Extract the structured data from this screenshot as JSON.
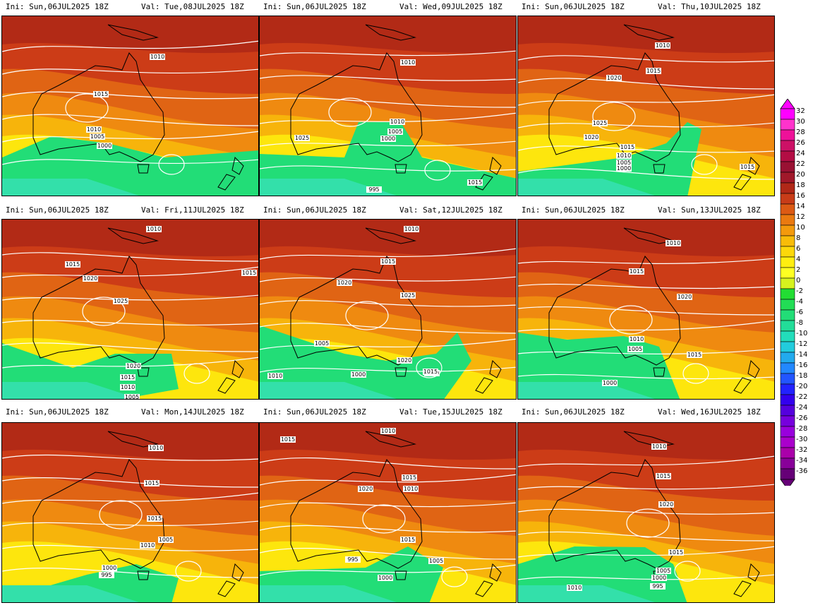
{
  "panels": [
    {
      "ini": "Ini: Sun,06JUL2025 18Z",
      "val": "Val: Tue,08JUL2025 18Z",
      "iso_labels": [
        "1010",
        "1015",
        "1010",
        "1005",
        "1000"
      ]
    },
    {
      "ini": "Ini: Sun,06JUL2025 18Z",
      "val": "Val: Wed,09JUL2025 18Z",
      "iso_labels": [
        "1010",
        "1025",
        "1010",
        "1005",
        "1000",
        "995",
        "1015"
      ]
    },
    {
      "ini": "Ini: Sun,06JUL2025 18Z",
      "val": "Val: Thu,10JUL2025 18Z",
      "iso_labels": [
        "1010",
        "1015",
        "1020",
        "1025",
        "1020",
        "1015",
        "1010",
        "1005",
        "1000",
        "1015"
      ]
    },
    {
      "ini": "Ini: Sun,06JUL2025 18Z",
      "val": "Val: Fri,11JUL2025 18Z",
      "iso_labels": [
        "1010",
        "1015",
        "1015",
        "1020",
        "1025",
        "1020",
        "1015",
        "1010",
        "1005"
      ]
    },
    {
      "ini": "Ini: Sun,06JUL2025 18Z",
      "val": "Val: Sat,12JUL2025 18Z",
      "iso_labels": [
        "1010",
        "1015",
        "1020",
        "1025",
        "1005",
        "1020",
        "1010",
        "1000",
        "1015",
        "1010"
      ]
    },
    {
      "ini": "Ini: Sun,06JUL2025 18Z",
      "val": "Val: Sun,13JUL2025 18Z",
      "iso_labels": [
        "1010",
        "1015",
        "1020",
        "1010",
        "1005",
        "1015",
        "1000"
      ]
    },
    {
      "ini": "Ini: Sun,06JUL2025 18Z",
      "val": "Val: Mon,14JUL2025 18Z",
      "iso_labels": [
        "1010",
        "1015",
        "1015",
        "1005",
        "1010",
        "1000",
        "995"
      ]
    },
    {
      "ini": "Ini: Sun,06JUL2025 18Z",
      "val": "Val: Tue,15JUL2025 18Z",
      "iso_labels": [
        "1010",
        "1015",
        "1015",
        "1020",
        "1010",
        "1015",
        "995",
        "1005",
        "1000"
      ]
    },
    {
      "ini": "Ini: Sun,06JUL2025 18Z",
      "val": "Val: Wed,16JUL2025 18Z",
      "iso_labels": [
        "1010",
        "1015",
        "1020",
        "1015",
        "1005",
        "1000",
        "995",
        "1010"
      ]
    }
  ],
  "colorbar": {
    "labels": [
      "32",
      "30",
      "28",
      "26",
      "24",
      "22",
      "20",
      "18",
      "16",
      "14",
      "12",
      "10",
      "8",
      "6",
      "4",
      "2",
      "0",
      "-2",
      "-4",
      "-6",
      "-8",
      "-10",
      "-12",
      "-14",
      "-16",
      "-18",
      "-20",
      "-22",
      "-24",
      "-26",
      "-28",
      "-30",
      "-32",
      "-34",
      "-36"
    ],
    "colors": [
      "#ff00ff",
      "#ff33cc",
      "#ee1199",
      "#cc1166",
      "#b30d44",
      "#991133",
      "#a0182a",
      "#b02818",
      "#c83c18",
      "#dc5a14",
      "#ea7a10",
      "#f39a0c",
      "#f8bc08",
      "#fcd80a",
      "#ffee10",
      "#ffff22",
      "#d6f21e",
      "#22dd33",
      "#22dd55",
      "#22dd77",
      "#22dd99",
      "#22ddbb",
      "#22ccdd",
      "#22aaee",
      "#2288ff",
      "#2255ff",
      "#2222ff",
      "#3300ee",
      "#5500dd",
      "#7700dd",
      "#9900dd",
      "#aa00cc",
      "#aa00aa",
      "#880099",
      "#660077"
    ]
  }
}
